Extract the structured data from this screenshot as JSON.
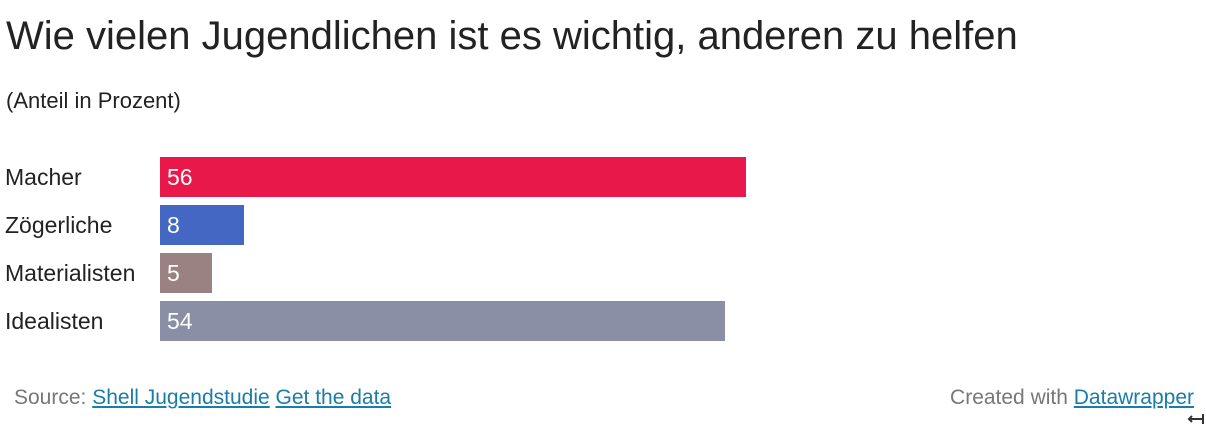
{
  "title": "Wie vielen Jugendlichen ist es wichtig, anderen zu helfen",
  "subtitle": "(Anteil in Prozent)",
  "chart_data": {
    "type": "bar",
    "orientation": "horizontal",
    "title": "Wie vielen Jugendlichen ist es wichtig, anderen zu helfen",
    "subtitle": "(Anteil in Prozent)",
    "categories": [
      "Macher",
      "Zögerliche",
      "Materialisten",
      "Idealisten"
    ],
    "values": [
      56,
      8,
      5,
      54
    ],
    "value_labels": [
      "56",
      "8",
      "5",
      "54"
    ],
    "colors": [
      "#e8194a",
      "#4467c4",
      "#9b8282",
      "#8a8fa5"
    ],
    "xlim": [
      0,
      100
    ],
    "grid": false,
    "legend": "none"
  },
  "footer": {
    "source_prefix": "Source:",
    "source_link": "Shell Jugendstudie",
    "data_link": "Get the data",
    "created_prefix": "Created with",
    "created_link": "Datawrapper"
  }
}
